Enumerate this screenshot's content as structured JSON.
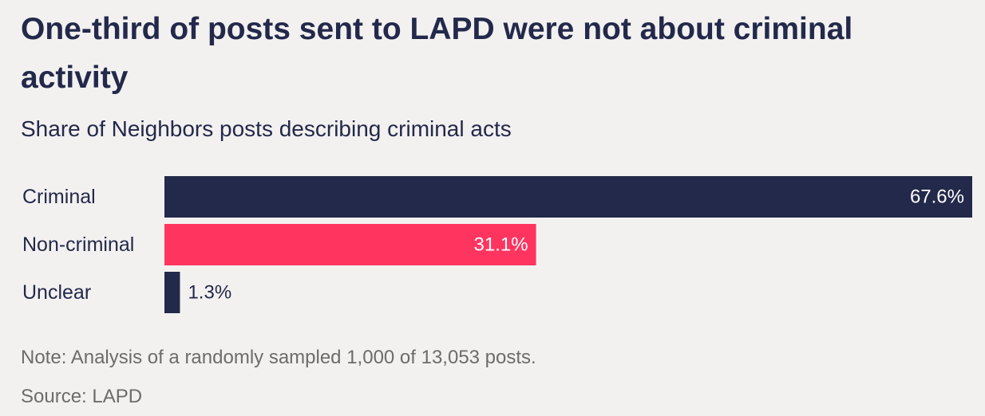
{
  "chart_data": {
    "type": "bar",
    "orientation": "horizontal",
    "title": "One-third of posts sent to LAPD were not about criminal activity",
    "subtitle": "Share of Neighbors posts describing criminal acts",
    "categories": [
      "Criminal",
      "Non-criminal",
      "Unclear"
    ],
    "values": [
      67.6,
      31.1,
      1.3
    ],
    "value_labels": [
      "67.6%",
      "31.1%",
      "1.3%"
    ],
    "unit": "%",
    "colors": [
      "#23294a",
      "#ff3560",
      "#23294a"
    ],
    "xlim": [
      0,
      67.6
    ],
    "grid": false,
    "legend": "none",
    "note": "Note: Analysis of a randomly sampled 1,000 of 13,053 posts.",
    "source": "Source: LAPD"
  }
}
